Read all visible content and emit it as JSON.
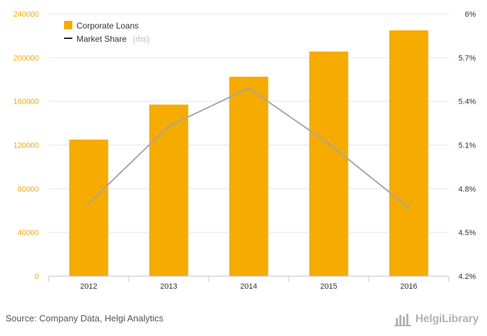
{
  "chart_data": {
    "type": "bar",
    "categories": [
      "2012",
      "2013",
      "2014",
      "2015",
      "2016"
    ],
    "series": [
      {
        "name": "Corporate Loans",
        "type": "bar",
        "axis": "left",
        "color": "#f5ab00",
        "values": [
          125000,
          157000,
          182500,
          205500,
          225000
        ]
      },
      {
        "name": "Market Share",
        "type": "line",
        "axis": "right",
        "color": "#a6a6a6",
        "values": [
          4.7,
          5.23,
          5.49,
          5.11,
          4.67
        ]
      }
    ],
    "y_left": {
      "min": 0,
      "max": 240000,
      "ticks": [
        0,
        40000,
        80000,
        120000,
        160000,
        200000,
        240000
      ],
      "tick_labels": [
        "0",
        "40000",
        "80000",
        "120000",
        "160000",
        "200000",
        "240000"
      ]
    },
    "y_right": {
      "min": 4.2,
      "max": 6.0,
      "ticks": [
        4.2,
        4.5,
        4.8,
        5.1,
        5.4,
        5.7,
        6.0
      ],
      "tick_labels": [
        "4.2%",
        "4.5%",
        "4.8%",
        "5.1%",
        "5.4%",
        "5.7%",
        "6%"
      ]
    },
    "grid": true,
    "legend": {
      "placement": "top-left",
      "items": [
        {
          "label": "Corporate Loans",
          "marker": "square"
        },
        {
          "label": "Market Share",
          "suffix": "(rhs)",
          "marker": "line"
        }
      ]
    }
  },
  "footer": {
    "source": "Source: Company Data, Helgi Analytics"
  },
  "brand": {
    "name": "HelgiLibrary"
  }
}
